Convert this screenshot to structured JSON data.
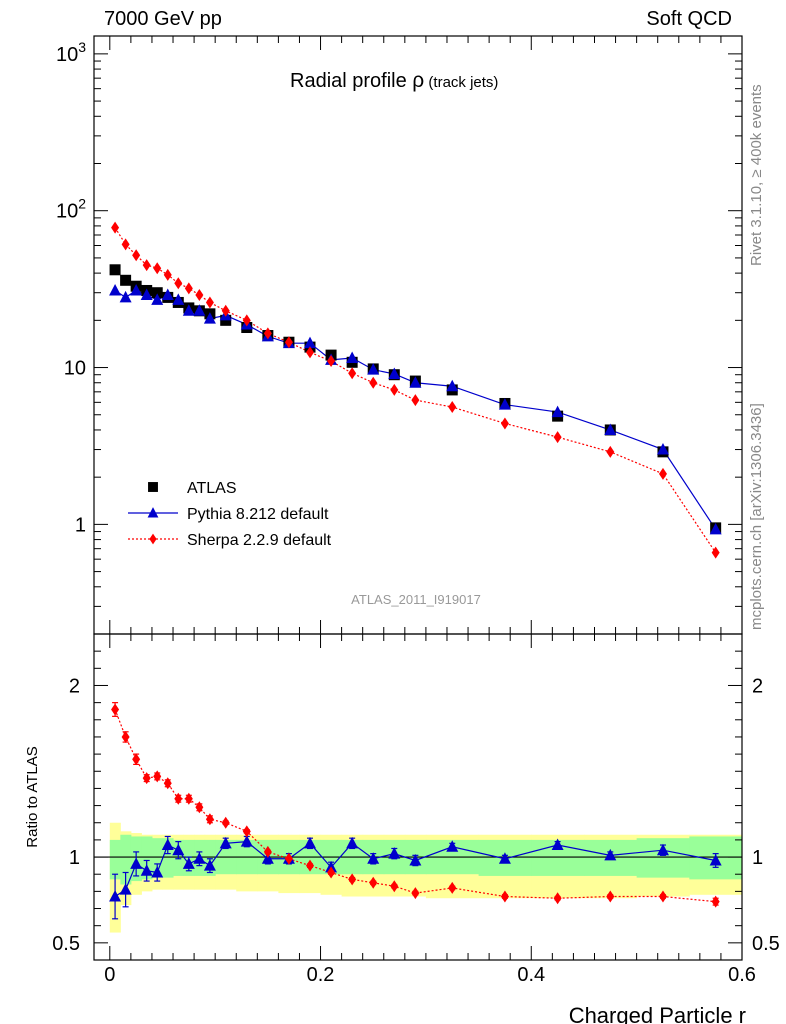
{
  "header": {
    "left": "7000 GeV pp",
    "right": "Soft QCD"
  },
  "side_labels": {
    "rivet": "Rivet 3.1.10, ≥ 400k events",
    "source": "mcplots.cern.ch [arXiv:1306.3436]"
  },
  "chart_data": {
    "type": "line",
    "title_main": "Radial profile ",
    "title_rho": "ρ",
    "title_sub": " (track jets)",
    "analysis_id": "ATLAS_2011_I919017",
    "xlabel": "Charged Particle r",
    "ylabel": "",
    "ratio_ylabel": "Ratio to ATLAS",
    "xlim": [
      -0.015,
      0.6
    ],
    "ylim": [
      0.2,
      1300
    ],
    "ratio_ylim": [
      0.4,
      2.3
    ],
    "x_ticks": [
      {
        "value": 0,
        "label": "0"
      },
      {
        "value": 0.2,
        "label": "0.2"
      },
      {
        "value": 0.4,
        "label": "0.4"
      },
      {
        "value": 0.6,
        "label": "0.6"
      }
    ],
    "y_ticks": [
      {
        "value": 1,
        "label": "1"
      },
      {
        "value": 10,
        "label": "10"
      },
      {
        "value": 100,
        "label": "10",
        "sup": "2"
      },
      {
        "value": 1000,
        "label": "10",
        "sup": "3"
      }
    ],
    "ratio_ticks": [
      {
        "value": 0.5,
        "label": "0.5"
      },
      {
        "value": 1,
        "label": "1"
      },
      {
        "value": 2,
        "label": "2"
      }
    ],
    "x": [
      0.005,
      0.015,
      0.025,
      0.035,
      0.045,
      0.055,
      0.065,
      0.075,
      0.085,
      0.095,
      0.11,
      0.13,
      0.15,
      0.17,
      0.19,
      0.21,
      0.23,
      0.25,
      0.27,
      0.29,
      0.325,
      0.375,
      0.425,
      0.475,
      0.525,
      0.575
    ],
    "band_edges": [
      0,
      0.01,
      0.02,
      0.03,
      0.04,
      0.05,
      0.06,
      0.07,
      0.08,
      0.09,
      0.1,
      0.12,
      0.14,
      0.16,
      0.18,
      0.2,
      0.22,
      0.24,
      0.26,
      0.28,
      0.3,
      0.35,
      0.4,
      0.45,
      0.5,
      0.55,
      0.6
    ],
    "band_stat": [
      [
        0.87,
        1.1
      ],
      [
        0.84,
        1.13
      ],
      [
        0.86,
        1.12
      ],
      [
        0.87,
        1.12
      ],
      [
        0.88,
        1.11
      ],
      [
        0.88,
        1.11
      ],
      [
        0.89,
        1.1
      ],
      [
        0.89,
        1.1
      ],
      [
        0.89,
        1.1
      ],
      [
        0.89,
        1.1
      ],
      [
        0.9,
        1.1
      ],
      [
        0.9,
        1.1
      ],
      [
        0.9,
        1.1
      ],
      [
        0.9,
        1.1
      ],
      [
        0.9,
        1.1
      ],
      [
        0.9,
        1.1
      ],
      [
        0.9,
        1.1
      ],
      [
        0.9,
        1.1
      ],
      [
        0.9,
        1.1
      ],
      [
        0.9,
        1.1
      ],
      [
        0.9,
        1.1
      ],
      [
        0.89,
        1.1
      ],
      [
        0.89,
        1.1
      ],
      [
        0.89,
        1.1
      ],
      [
        0.88,
        1.11
      ],
      [
        0.87,
        1.12
      ]
    ],
    "band_total": [
      [
        0.56,
        1.2
      ],
      [
        0.72,
        1.15
      ],
      [
        0.78,
        1.14
      ],
      [
        0.8,
        1.13
      ],
      [
        0.81,
        1.13
      ],
      [
        0.81,
        1.13
      ],
      [
        0.81,
        1.13
      ],
      [
        0.81,
        1.13
      ],
      [
        0.81,
        1.13
      ],
      [
        0.81,
        1.13
      ],
      [
        0.81,
        1.13
      ],
      [
        0.8,
        1.13
      ],
      [
        0.8,
        1.13
      ],
      [
        0.79,
        1.13
      ],
      [
        0.79,
        1.13
      ],
      [
        0.78,
        1.13
      ],
      [
        0.77,
        1.13
      ],
      [
        0.77,
        1.13
      ],
      [
        0.77,
        1.13
      ],
      [
        0.77,
        1.13
      ],
      [
        0.76,
        1.13
      ],
      [
        0.76,
        1.13
      ],
      [
        0.76,
        1.13
      ],
      [
        0.76,
        1.13
      ],
      [
        0.77,
        1.13
      ],
      [
        0.78,
        1.13
      ]
    ],
    "series": [
      {
        "name": "ATLAS",
        "color": "#000000",
        "marker": "square",
        "values": [
          42,
          36,
          33,
          31,
          30,
          28,
          26,
          24,
          23,
          22,
          20,
          18,
          16,
          14.5,
          13.5,
          12,
          10.8,
          9.8,
          9.0,
          8.2,
          7.2,
          5.9,
          4.9,
          4.0,
          2.9,
          0.95
        ]
      },
      {
        "name": "Pythia 8.212 default",
        "color": "#0000cc",
        "marker": "triangle",
        "values": [
          31,
          28,
          31,
          29,
          27,
          29,
          27,
          23,
          23,
          20.5,
          21.5,
          18.8,
          15.8,
          14.3,
          14.3,
          11.2,
          11.5,
          9.7,
          9.1,
          8.0,
          7.6,
          5.8,
          5.2,
          4.0,
          3.0,
          0.93
        ],
        "ratio": [
          0.77,
          0.81,
          0.96,
          0.92,
          0.91,
          1.07,
          1.04,
          0.96,
          0.99,
          0.95,
          1.08,
          1.09,
          0.99,
          0.99,
          1.08,
          0.94,
          1.08,
          0.99,
          1.02,
          0.98,
          1.06,
          0.99,
          1.07,
          1.01,
          1.04,
          0.98
        ],
        "ratio_err": [
          0.13,
          0.1,
          0.07,
          0.06,
          0.05,
          0.05,
          0.05,
          0.04,
          0.04,
          0.04,
          0.03,
          0.03,
          0.03,
          0.03,
          0.03,
          0.03,
          0.03,
          0.03,
          0.03,
          0.03,
          0.02,
          0.02,
          0.02,
          0.02,
          0.03,
          0.04
        ]
      },
      {
        "name": "Sherpa 2.2.9 default",
        "color": "#ff0000",
        "marker": "diamond",
        "values": [
          78,
          61,
          52,
          45,
          43,
          39,
          34.5,
          32,
          29,
          26,
          23,
          20,
          16.5,
          14.5,
          12.5,
          11,
          9.2,
          8.0,
          7.2,
          6.2,
          5.6,
          4.4,
          3.6,
          2.9,
          2.1,
          0.66
        ],
        "ratio": [
          1.86,
          1.7,
          1.57,
          1.46,
          1.47,
          1.43,
          1.34,
          1.34,
          1.29,
          1.22,
          1.2,
          1.15,
          1.03,
          0.99,
          0.95,
          0.91,
          0.87,
          0.85,
          0.83,
          0.79,
          0.82,
          0.77,
          0.76,
          0.77,
          0.77,
          0.74
        ],
        "ratio_err": [
          0.04,
          0.03,
          0.03,
          0.02,
          0.02,
          0.02,
          0.02,
          0.02,
          0.02,
          0.02,
          0.01,
          0.01,
          0.01,
          0.01,
          0.01,
          0.01,
          0.01,
          0.01,
          0.01,
          0.01,
          0.01,
          0.01,
          0.01,
          0.01,
          0.01,
          0.02
        ]
      }
    ],
    "legend_position": "middle-left"
  }
}
